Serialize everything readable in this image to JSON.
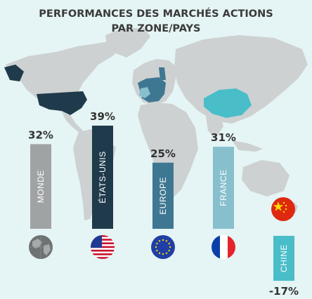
{
  "title_line1": "PERFORMANCES DES MARCHÉS ACTIONS",
  "title_line2": "PAR ZONE/PAYS",
  "colors": {
    "background": "#e5f4f4",
    "map_land": "#cdd1d2",
    "monde": "#a0a3a4",
    "etats_unis": "#1f3a4b",
    "europe": "#3e7791",
    "france": "#87bfcd",
    "chine": "#49bdc8"
  },
  "chart_data": {
    "type": "bar",
    "title": "PERFORMANCES DES MARCHÉS ACTIONS PAR ZONE/PAYS",
    "categories": [
      "MONDE",
      "ÉTATS-UNIS",
      "EUROPE",
      "FRANCE",
      "CHINE"
    ],
    "values": [
      32,
      39,
      25,
      31,
      -17
    ],
    "labels": [
      "32%",
      "39%",
      "25%",
      "31%",
      "-17%"
    ],
    "icons": [
      "globe-icon",
      "us-flag-icon",
      "eu-flag-icon",
      "france-flag-icon",
      "china-flag-icon"
    ],
    "xlabel": "",
    "ylabel": "",
    "grid": false,
    "legend": "none"
  }
}
